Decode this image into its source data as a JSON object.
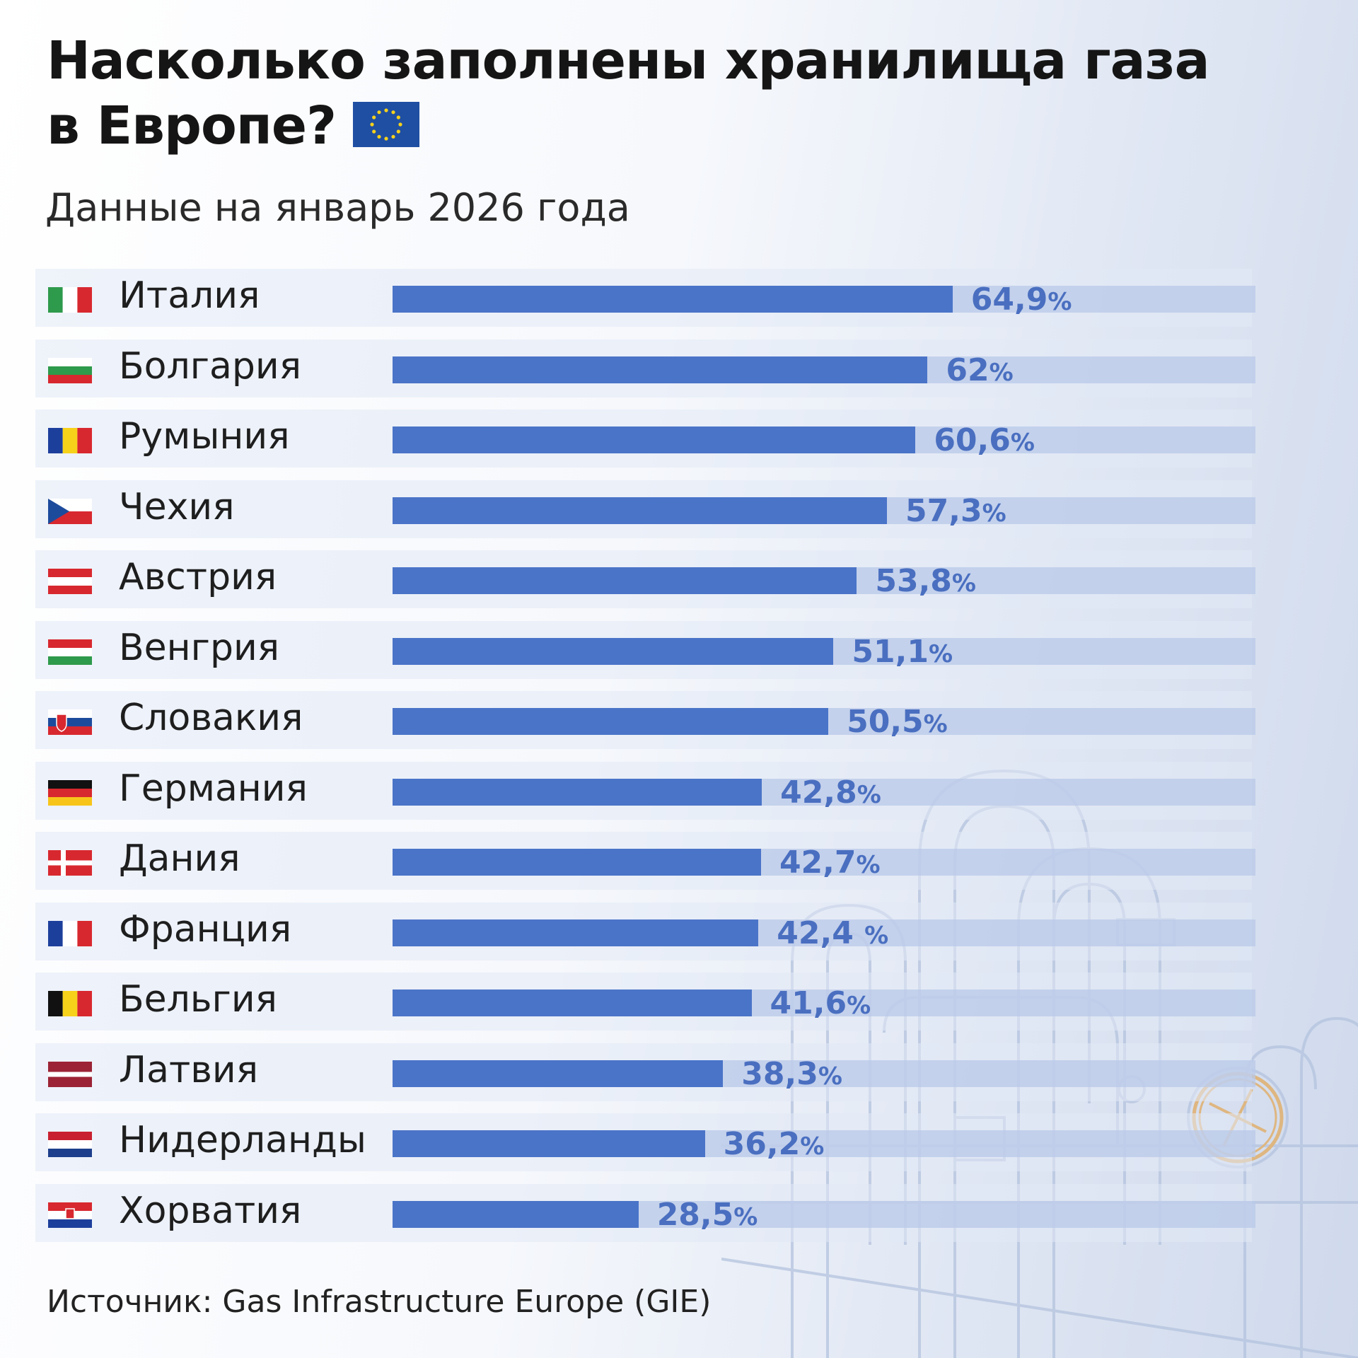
{
  "chart_data": {
    "type": "bar",
    "orientation": "horizontal",
    "title_line1": "Насколько заполнены хранилища газа",
    "title_line2": "в Европе?",
    "subtitle": "Данные на январь 2026 года",
    "source": "Источник: Gas Infrastructure Europe (GIE)",
    "xlim": [
      0,
      100
    ],
    "categories": [
      "Италия",
      "Болгария",
      "Румыния",
      "Чехия",
      "Австрия",
      "Венгрия",
      "Словакия",
      "Германия",
      "Дания",
      "Франция",
      "Бельгия",
      "Латвия",
      "Нидерланды",
      "Хорватия"
    ],
    "values": [
      64.9,
      62,
      60.6,
      57.3,
      53.8,
      51.1,
      50.5,
      42.8,
      42.7,
      42.4,
      41.6,
      38.3,
      36.2,
      28.5
    ],
    "value_labels": [
      "64,9",
      "62",
      "60,6",
      "57,3",
      "53,8",
      "51,1",
      "50,5",
      "42,8",
      "42,7",
      "42,4 ",
      "41,6",
      "38,3",
      "36,2",
      "28,5"
    ],
    "unit": "%",
    "flags": [
      "italy",
      "bulgaria",
      "romania",
      "czechia",
      "austria",
      "hungary",
      "slovakia",
      "germany",
      "denmark",
      "france",
      "belgium",
      "latvia",
      "netherlands",
      "croatia"
    ],
    "colors": {
      "bar": "#4a74c8",
      "track": "#b8c8e8",
      "value_text": "#4a6fc0"
    }
  }
}
